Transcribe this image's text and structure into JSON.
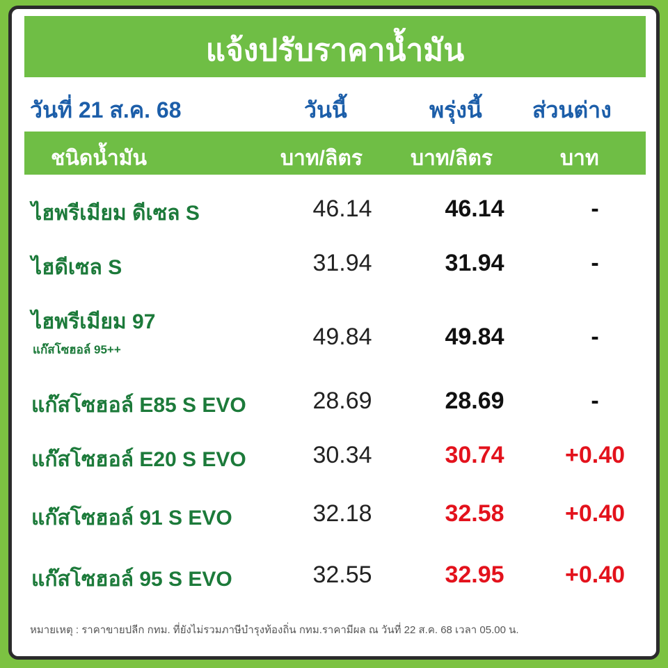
{
  "header": {
    "title": "แจ้งปรับราคาน้ำมัน",
    "date": "วันที่ 21 ส.ค. 68",
    "columns": [
      "วันนี้",
      "พรุ่งนี้",
      "ส่วนต่าง"
    ]
  },
  "subheader": [
    "ชนิดน้ำมัน",
    "บาท/ลิตร",
    "บาท/ลิตร",
    "บาท"
  ],
  "rows": [
    {
      "name": "ไฮพรีเมียม ดีเซล S",
      "today": "46.14",
      "tomorrow": "46.14",
      "diff": "-",
      "color": "#111111"
    },
    {
      "name": "ไฮดีเซล S",
      "today": "31.94",
      "tomorrow": "31.94",
      "diff": "-",
      "color": "#111111"
    },
    {
      "name": "ไฮพรีเมียม 97",
      "subname": "แก๊สโซฮอล์ 95++",
      "today": "49.84",
      "tomorrow": "49.84",
      "diff": "-",
      "color": "#111111"
    },
    {
      "name": "แก๊สโซฮอล์ E85 S EVO",
      "today": "28.69",
      "tomorrow": "28.69",
      "diff": "-",
      "color": "#111111"
    },
    {
      "name": "แก๊สโซฮอล์ E20 S EVO",
      "today": "30.34",
      "tomorrow": "30.74",
      "diff": "+0.40",
      "color": "#e3121c"
    },
    {
      "name": "แก๊สโซฮอล์ 91 S EVO",
      "today": "32.18",
      "tomorrow": "32.58",
      "diff": "+0.40",
      "color": "#e3121c"
    },
    {
      "name": "แก๊สโซฮอล์ 95 S EVO",
      "today": "32.55",
      "tomorrow": "32.95",
      "diff": "+0.40",
      "color": "#e3121c"
    }
  ],
  "note": "หมายเหตุ : ราคาขายปลีก กทม. ที่ยังไม่รวมภาษีบำรุงท้องถิ่น กทม.ราคามีผล ณ วันที่ 22 ส.ค. 68 เวลา 05.00 น."
}
